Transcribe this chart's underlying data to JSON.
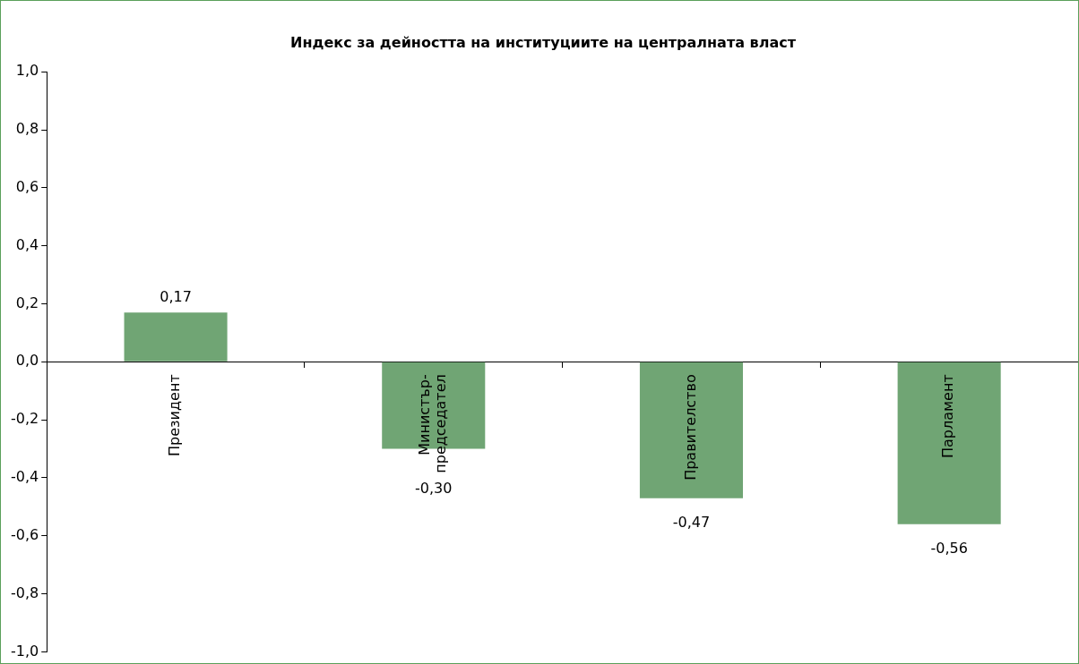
{
  "chart_data": {
    "type": "bar",
    "title": "Индекс за дейността на институциите на централната власт",
    "categories": [
      "Президент",
      "Министър-председател",
      "Правителство",
      "Парламент"
    ],
    "values": [
      0.17,
      -0.3,
      -0.47,
      -0.56
    ],
    "color": "#70a574",
    "value_labels": [
      "0,17",
      "-0,30",
      "-0,47",
      "-0,56"
    ],
    "ylim": [
      -1,
      1
    ],
    "yticks": [
      {
        "value": -1,
        "label": "-1,0"
      },
      {
        "value": -0.8,
        "label": "-0,8"
      },
      {
        "value": -0.6,
        "label": "-0,6"
      },
      {
        "value": -0.4,
        "label": "-0,4"
      },
      {
        "value": -0.2,
        "label": "-0,2"
      },
      {
        "value": 0,
        "label": "0,0"
      },
      {
        "value": 0.2,
        "label": "0,2"
      },
      {
        "value": 0.4,
        "label": "0,4"
      },
      {
        "value": 0.6,
        "label": "0,6"
      },
      {
        "value": 0.8,
        "label": "0,8"
      },
      {
        "value": 1,
        "label": "1,0"
      }
    ],
    "grid": false,
    "legend": false
  }
}
